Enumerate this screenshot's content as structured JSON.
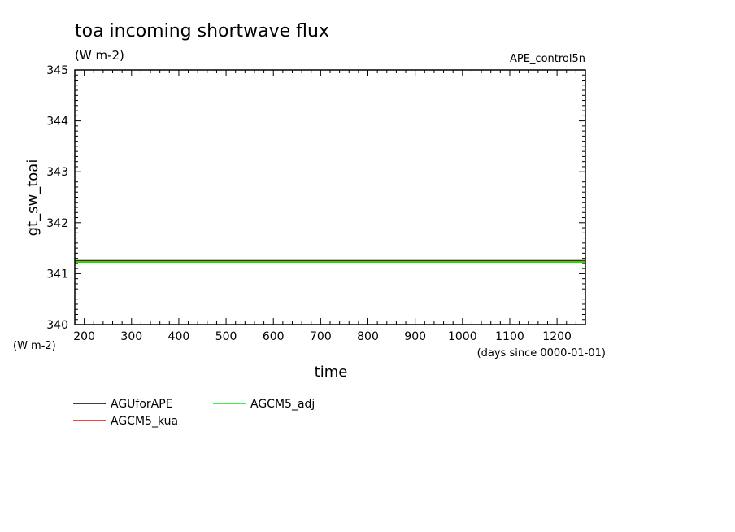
{
  "chart_data": {
    "type": "line",
    "title": "toa incoming shortwave flux",
    "subtitle": "(W m-2)",
    "experiment": "APE_control5n",
    "xlabel": "time",
    "x_units": "(days since 0000-01-01)",
    "ylabel": "gt_sw_toai",
    "y_units": "(W m-2)",
    "xlim": [
      180,
      1260
    ],
    "ylim": [
      340,
      345
    ],
    "x_ticks": [
      200,
      300,
      400,
      500,
      600,
      700,
      800,
      900,
      1000,
      1100,
      1200
    ],
    "x_tick_labels": [
      "200",
      "300",
      "400",
      "500",
      "600",
      "700",
      "800",
      "900",
      "1000",
      "1100",
      "1200"
    ],
    "y_ticks": [
      340,
      341,
      342,
      343,
      344,
      345
    ],
    "y_tick_labels": [
      "340",
      "341",
      "342",
      "343",
      "344",
      "345"
    ],
    "grid": false,
    "legend_placement": "bottom-left",
    "series": [
      {
        "name": "AGUforAPE",
        "color": "#000000",
        "x": [
          180,
          1260
        ],
        "y": [
          341.25,
          341.25
        ]
      },
      {
        "name": "AGCM5_kua",
        "color": "#ff0000",
        "x": [
          180,
          1260
        ],
        "y": [
          341.24,
          341.24
        ]
      },
      {
        "name": "AGCM5_adj",
        "color": "#00ee00",
        "x": [
          180,
          1260
        ],
        "y": [
          341.23,
          341.23
        ]
      }
    ]
  }
}
